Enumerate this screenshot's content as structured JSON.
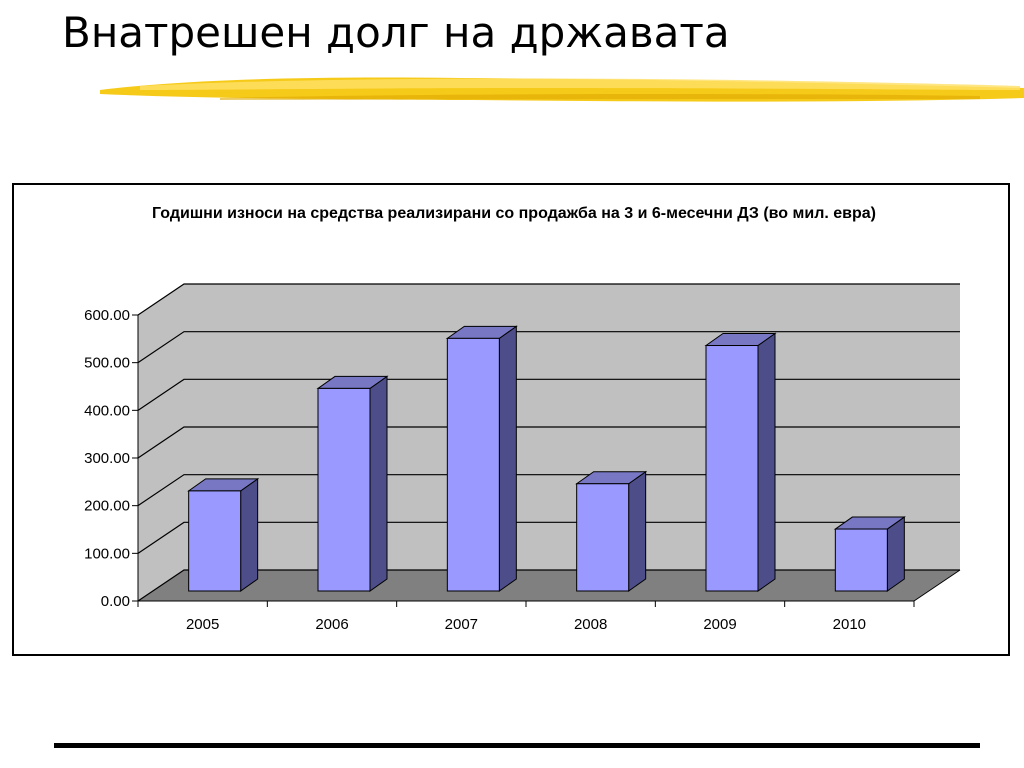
{
  "slide": {
    "title": "Внатрешен долг на државата"
  },
  "colors": {
    "bar_front": "#9999ff",
    "bar_side": "#4d4d8a",
    "bar_top": "#7777c4",
    "wall": "#c0c0c0",
    "floor": "#808080",
    "brush": "#f5c400"
  },
  "chart_data": {
    "type": "bar",
    "title": "Годишни износи на средства реализирани со продажба на 3 и 6-месечни ДЗ (во мил. евра)",
    "categories": [
      "2005",
      "2006",
      "2007",
      "2008",
      "2009",
      "2010"
    ],
    "values": [
      210,
      425,
      530,
      225,
      515,
      130
    ],
    "ylim": [
      0,
      600
    ],
    "yticks": [
      "0.00",
      "100.00",
      "200.00",
      "300.00",
      "400.00",
      "500.00",
      "600.00"
    ],
    "grid": true,
    "legend": "none",
    "style": "3d-column"
  }
}
